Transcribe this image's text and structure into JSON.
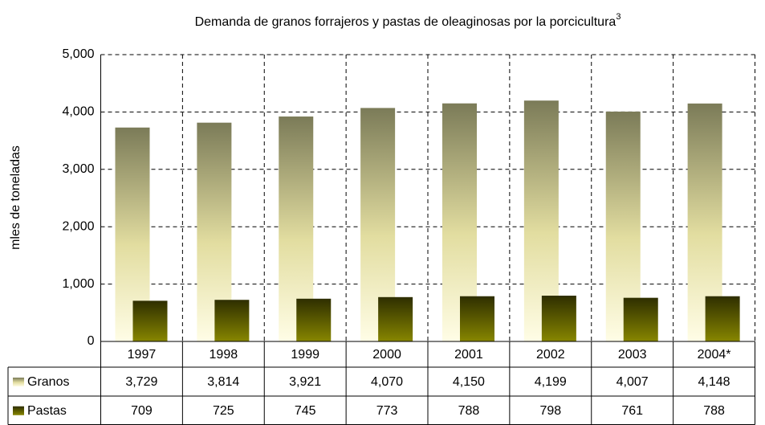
{
  "chart_data": {
    "type": "bar",
    "title": "Demanda de granos forrajeros y pastas de oleaginosas por la porcicultura",
    "title_superscript": "3",
    "y_axis_label": "mles de toneladas",
    "categories": [
      "1997",
      "1998",
      "1999",
      "2000",
      "2001",
      "2002",
      "2003",
      "2004*"
    ],
    "series": [
      {
        "name": "Granos",
        "color": "#7b7b58",
        "values": [
          3729,
          3814,
          3921,
          4070,
          4150,
          4199,
          4007,
          4148
        ],
        "value_labels": [
          "3,729",
          "3,814",
          "3,921",
          "4,070",
          "4,150",
          "4,199",
          "4,007",
          "4,148"
        ]
      },
      {
        "name": "Pastas",
        "color": "#3e3e00",
        "values": [
          709,
          725,
          745,
          773,
          788,
          798,
          761,
          788
        ]
      }
    ],
    "ylim": [
      0,
      5000
    ],
    "yticks": [
      0,
      {
        "value": 1000,
        "label": "1,000"
      },
      {
        "value": 2000,
        "label": "2,000"
      },
      {
        "value": 3000,
        "label": "3,000"
      },
      {
        "value": 4000,
        "label": "4,000"
      },
      {
        "value": 5000,
        "label": "5,000"
      }
    ],
    "grid": true
  }
}
